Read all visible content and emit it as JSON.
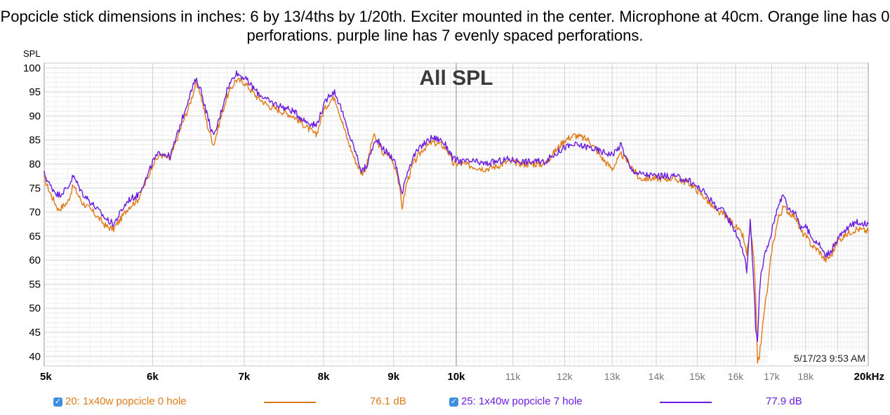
{
  "title": "Popcicle stick dimensions in inches: 6 by 13/4ths by 1/20th. Exciter mounted in the center. Microphone at 40cm. Orange line has 0 perforations. purple line has 7 evenly spaced perforations.",
  "chart_data": {
    "type": "line",
    "title": "All SPL",
    "ylabel": "SPL",
    "xlabel": "",
    "x_scale": "log",
    "xlim": [
      5000,
      20000
    ],
    "ylim": [
      38,
      101
    ],
    "grid": true,
    "timestamp": "5/17/23 9:53 AM",
    "yticks": [
      40,
      45,
      50,
      55,
      60,
      65,
      70,
      75,
      80,
      85,
      90,
      95,
      100
    ],
    "xticks_major": [
      {
        "value": 5000,
        "label": "5k"
      },
      {
        "value": 6000,
        "label": "6k"
      },
      {
        "value": 7000,
        "label": "7k"
      },
      {
        "value": 8000,
        "label": "8k"
      },
      {
        "value": 9000,
        "label": "9k"
      },
      {
        "value": 10000,
        "label": "10k"
      },
      {
        "value": 20000,
        "label": "20kHz"
      }
    ],
    "xticks_minor": [
      {
        "value": 11000,
        "label": "11k"
      },
      {
        "value": 12000,
        "label": "12k"
      },
      {
        "value": 13000,
        "label": "13k"
      },
      {
        "value": 14000,
        "label": "14k"
      },
      {
        "value": 15000,
        "label": "15k"
      },
      {
        "value": 16000,
        "label": "16k"
      },
      {
        "value": 17000,
        "label": "17k"
      },
      {
        "value": 18000,
        "label": "18k"
      }
    ],
    "series": [
      {
        "name": "20: 1x40w popcicle 0 hole",
        "level": "76.1 dB",
        "color": "#e07b1a",
        "points": [
          [
            5000,
            77
          ],
          [
            5050,
            74
          ],
          [
            5120,
            70.5
          ],
          [
            5200,
            72
          ],
          [
            5250,
            75.5
          ],
          [
            5330,
            72
          ],
          [
            5430,
            70
          ],
          [
            5550,
            67
          ],
          [
            5620,
            66.5
          ],
          [
            5700,
            69
          ],
          [
            5760,
            71
          ],
          [
            5850,
            72.5
          ],
          [
            5950,
            77
          ],
          [
            6000,
            80
          ],
          [
            6080,
            82
          ],
          [
            6180,
            81
          ],
          [
            6300,
            88
          ],
          [
            6380,
            92
          ],
          [
            6450,
            96.5
          ],
          [
            6500,
            95
          ],
          [
            6580,
            88
          ],
          [
            6650,
            84
          ],
          [
            6720,
            89
          ],
          [
            6800,
            94
          ],
          [
            6900,
            97.5
          ],
          [
            7000,
            97
          ],
          [
            7150,
            94
          ],
          [
            7300,
            92
          ],
          [
            7450,
            91
          ],
          [
            7600,
            90
          ],
          [
            7750,
            88
          ],
          [
            7900,
            86
          ],
          [
            8000,
            91
          ],
          [
            8080,
            93
          ],
          [
            8150,
            94
          ],
          [
            8230,
            90
          ],
          [
            8330,
            85
          ],
          [
            8430,
            81
          ],
          [
            8530,
            78
          ],
          [
            8600,
            79.5
          ],
          [
            8700,
            86
          ],
          [
            8780,
            84
          ],
          [
            8850,
            82
          ],
          [
            8930,
            82
          ],
          [
            9000,
            80
          ],
          [
            9050,
            78.5
          ],
          [
            9100,
            74
          ],
          [
            9130,
            71
          ],
          [
            9200,
            76
          ],
          [
            9300,
            80
          ],
          [
            9450,
            83
          ],
          [
            9600,
            84.5
          ],
          [
            9750,
            84
          ],
          [
            9850,
            83
          ],
          [
            9950,
            80
          ],
          [
            10100,
            80
          ],
          [
            10300,
            79.5
          ],
          [
            10500,
            79
          ],
          [
            10700,
            79.5
          ],
          [
            10900,
            80.5
          ],
          [
            11200,
            80
          ],
          [
            11600,
            80
          ],
          [
            12000,
            85
          ],
          [
            12200,
            86
          ],
          [
            12500,
            85
          ],
          [
            12800,
            81
          ],
          [
            13000,
            79
          ],
          [
            13200,
            82
          ],
          [
            13400,
            80
          ],
          [
            13600,
            77
          ],
          [
            14000,
            77
          ],
          [
            14400,
            77
          ],
          [
            14800,
            76
          ],
          [
            15200,
            73
          ],
          [
            15500,
            70
          ],
          [
            15700,
            69.5
          ],
          [
            16000,
            67
          ],
          [
            16200,
            65
          ],
          [
            16300,
            61
          ],
          [
            16400,
            67
          ],
          [
            16500,
            60
          ],
          [
            16550,
            52
          ],
          [
            16600,
            39
          ],
          [
            16650,
            40
          ],
          [
            16700,
            43
          ],
          [
            16800,
            50
          ],
          [
            16900,
            55
          ],
          [
            17000,
            62
          ],
          [
            17200,
            69
          ],
          [
            17350,
            71
          ],
          [
            17500,
            70
          ],
          [
            17700,
            69
          ],
          [
            17850,
            66
          ],
          [
            18000,
            65
          ],
          [
            18200,
            63
          ],
          [
            18400,
            62
          ],
          [
            18600,
            60
          ],
          [
            18800,
            61
          ],
          [
            19000,
            64
          ],
          [
            19300,
            65.5
          ],
          [
            19600,
            66.5
          ],
          [
            20000,
            66
          ]
        ]
      },
      {
        "name": "25: 1x40w popcicle 7 hole",
        "level": "77.9 dB",
        "color": "#6a1de0",
        "points": [
          [
            5000,
            78
          ],
          [
            5050,
            75.5
          ],
          [
            5120,
            73.5
          ],
          [
            5200,
            75
          ],
          [
            5250,
            77.5
          ],
          [
            5330,
            74
          ],
          [
            5430,
            71.5
          ],
          [
            5550,
            68.5
          ],
          [
            5620,
            67.5
          ],
          [
            5700,
            70.5
          ],
          [
            5760,
            72.5
          ],
          [
            5850,
            73.5
          ],
          [
            5950,
            77.5
          ],
          [
            6000,
            80.5
          ],
          [
            6080,
            82.5
          ],
          [
            6180,
            81.5
          ],
          [
            6300,
            89
          ],
          [
            6380,
            94
          ],
          [
            6450,
            97.5
          ],
          [
            6500,
            96
          ],
          [
            6580,
            90
          ],
          [
            6650,
            85.5
          ],
          [
            6720,
            90
          ],
          [
            6800,
            95.5
          ],
          [
            6900,
            99
          ],
          [
            7000,
            98
          ],
          [
            7150,
            95
          ],
          [
            7300,
            93
          ],
          [
            7450,
            92
          ],
          [
            7600,
            91
          ],
          [
            7750,
            89
          ],
          [
            7900,
            88
          ],
          [
            8000,
            92
          ],
          [
            8080,
            94.5
          ],
          [
            8150,
            95
          ],
          [
            8230,
            92
          ],
          [
            8330,
            87
          ],
          [
            8430,
            83
          ],
          [
            8530,
            78.5
          ],
          [
            8600,
            79.5
          ],
          [
            8700,
            84
          ],
          [
            8780,
            85
          ],
          [
            8850,
            83
          ],
          [
            8930,
            82
          ],
          [
            9000,
            81
          ],
          [
            9050,
            79
          ],
          [
            9100,
            75.5
          ],
          [
            9130,
            73.5
          ],
          [
            9200,
            78
          ],
          [
            9300,
            81.5
          ],
          [
            9450,
            84
          ],
          [
            9600,
            85.5
          ],
          [
            9750,
            85
          ],
          [
            9850,
            83.5
          ],
          [
            9950,
            81
          ],
          [
            10100,
            80.5
          ],
          [
            10300,
            80.5
          ],
          [
            10500,
            80
          ],
          [
            10700,
            80.5
          ],
          [
            10900,
            81
          ],
          [
            11200,
            80.5
          ],
          [
            11600,
            80.5
          ],
          [
            12000,
            83.5
          ],
          [
            12200,
            84
          ],
          [
            12500,
            83.5
          ],
          [
            12800,
            82.5
          ],
          [
            13000,
            82
          ],
          [
            13200,
            84
          ],
          [
            13400,
            79
          ],
          [
            13600,
            78
          ],
          [
            14000,
            77.5
          ],
          [
            14400,
            77.5
          ],
          [
            14800,
            76.5
          ],
          [
            15200,
            74
          ],
          [
            15500,
            71
          ],
          [
            15700,
            70
          ],
          [
            16000,
            66
          ],
          [
            16200,
            62
          ],
          [
            16300,
            58
          ],
          [
            16400,
            68
          ],
          [
            16500,
            55
          ],
          [
            16550,
            46
          ],
          [
            16600,
            43
          ],
          [
            16650,
            52
          ],
          [
            16700,
            57
          ],
          [
            16800,
            61
          ],
          [
            16900,
            63
          ],
          [
            17000,
            66
          ],
          [
            17200,
            72
          ],
          [
            17350,
            73.5
          ],
          [
            17500,
            70.5
          ],
          [
            17700,
            70
          ],
          [
            17850,
            67
          ],
          [
            18000,
            67
          ],
          [
            18200,
            64.5
          ],
          [
            18400,
            63.5
          ],
          [
            18600,
            61
          ],
          [
            18800,
            62
          ],
          [
            19000,
            64.5
          ],
          [
            19300,
            66.5
          ],
          [
            19600,
            68
          ],
          [
            20000,
            67.5
          ]
        ]
      }
    ]
  }
}
